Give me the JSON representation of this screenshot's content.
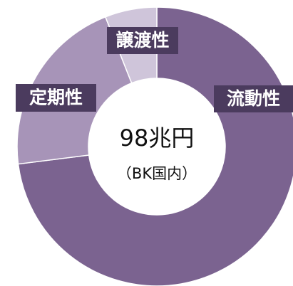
{
  "chart_data": {
    "type": "donut",
    "categories": [
      "流動性",
      "定期性",
      "譲渡性"
    ],
    "values": [
      73,
      21,
      6
    ],
    "colors": [
      "#7b6390",
      "#a794b8",
      "#cfc5da"
    ],
    "center_title": "98兆円",
    "center_subtitle": "（BK国内）"
  }
}
